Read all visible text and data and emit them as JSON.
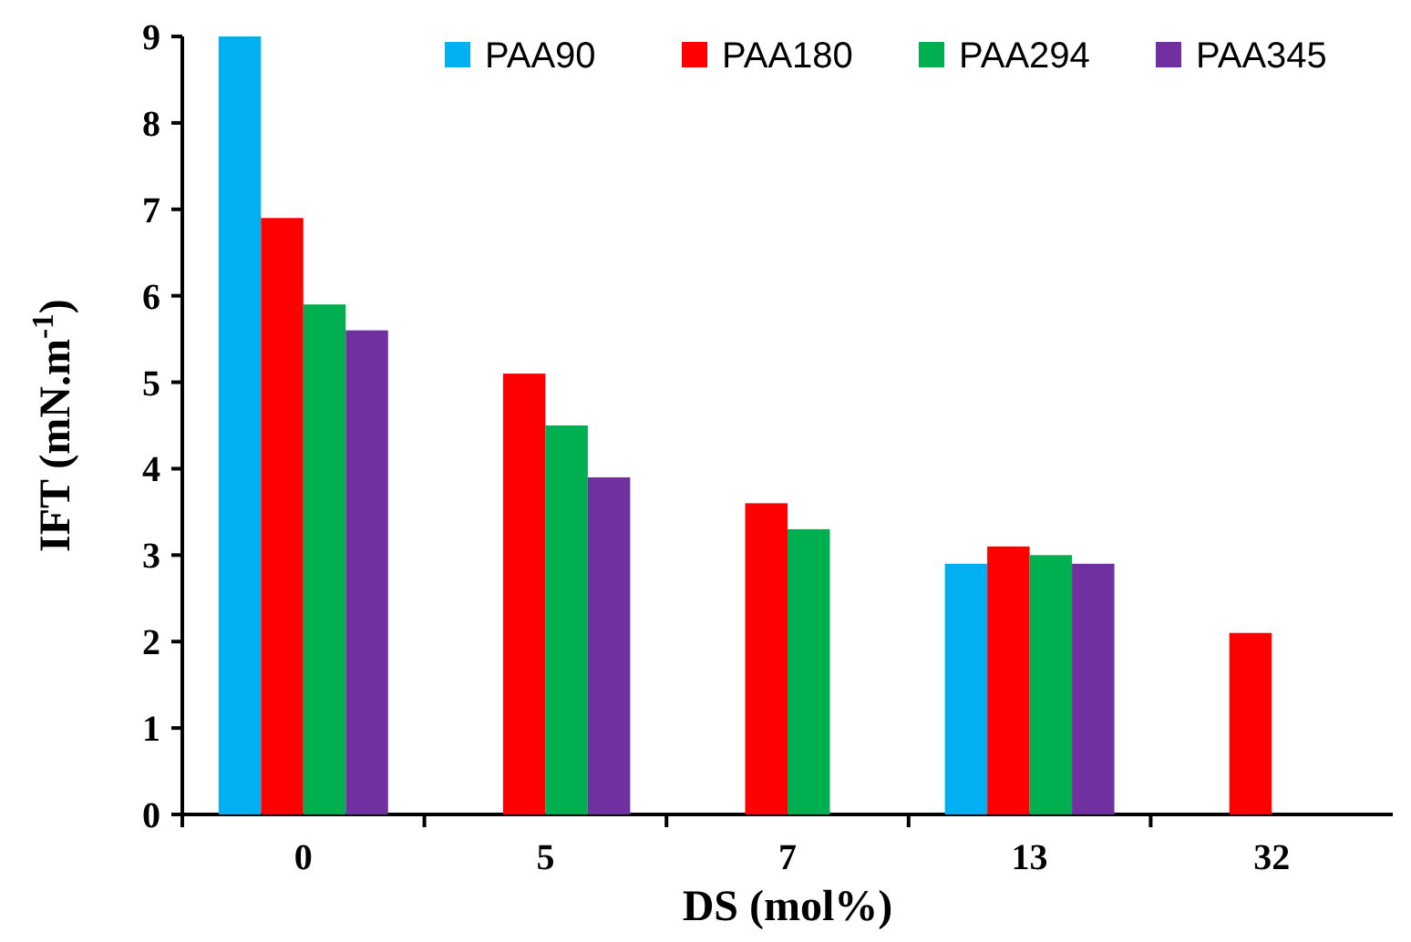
{
  "chart_data": {
    "type": "bar",
    "xlabel": "DS (mol%)",
    "ylabel": "IFT (mN.m$^{-1}$)",
    "categories": [
      "0",
      "5",
      "7",
      "13",
      "32"
    ],
    "series": [
      {
        "name": "PAA90",
        "color": "#00b0f0",
        "values": [
          9,
          null,
          null,
          2.9,
          null
        ]
      },
      {
        "name": "PAA180",
        "color": "#ff0000",
        "values": [
          6.9,
          5.1,
          3.6,
          3.1,
          2.1
        ]
      },
      {
        "name": "PAA294",
        "color": "#00b050",
        "values": [
          5.9,
          4.5,
          3.3,
          3.0,
          null
        ]
      },
      {
        "name": "PAA345",
        "color": "#7030a0",
        "values": [
          5.6,
          3.9,
          null,
          2.9,
          null
        ]
      }
    ],
    "ylim": [
      0,
      9
    ],
    "yticks": [
      0,
      1,
      2,
      3,
      4,
      5,
      6,
      7,
      8,
      9
    ],
    "legend": "top right",
    "grid": false
  }
}
